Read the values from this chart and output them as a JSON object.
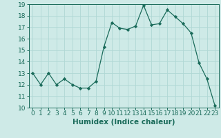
{
  "x": [
    0,
    1,
    2,
    3,
    4,
    5,
    6,
    7,
    8,
    9,
    10,
    11,
    12,
    13,
    14,
    15,
    16,
    17,
    18,
    19,
    20,
    21,
    22,
    23
  ],
  "y": [
    13.0,
    12.0,
    13.0,
    12.0,
    12.5,
    12.0,
    11.7,
    11.7,
    12.3,
    15.3,
    17.4,
    16.9,
    16.8,
    17.1,
    18.9,
    17.2,
    17.3,
    18.5,
    17.9,
    17.3,
    16.5,
    13.9,
    12.5,
    10.2
  ],
  "line_color": "#1a6b5a",
  "marker": "D",
  "marker_size": 2.2,
  "bg_color": "#ceeae7",
  "grid_color": "#b0d8d4",
  "xlabel": "Humidex (Indice chaleur)",
  "xlim": [
    -0.5,
    23.5
  ],
  "ylim": [
    10,
    19
  ],
  "yticks": [
    10,
    11,
    12,
    13,
    14,
    15,
    16,
    17,
    18,
    19
  ],
  "xticks": [
    0,
    1,
    2,
    3,
    4,
    5,
    6,
    7,
    8,
    9,
    10,
    11,
    12,
    13,
    14,
    15,
    16,
    17,
    18,
    19,
    20,
    21,
    22,
    23
  ],
  "tick_fontsize": 6.5,
  "label_fontsize": 7.5
}
